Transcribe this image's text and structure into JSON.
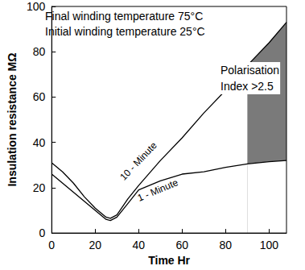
{
  "chart_data": {
    "type": "line",
    "x_label": "Time Hr",
    "y_label": "Insulation resistance MΩ",
    "x": [
      0,
      5,
      10,
      15,
      20,
      25,
      27,
      30,
      35,
      40,
      50,
      60,
      70,
      80,
      90,
      100,
      108
    ],
    "series": [
      {
        "name": "10 - Minute",
        "color": "#000000",
        "values": [
          31,
          27,
          22,
          16,
          11,
          7,
          6.5,
          8,
          15,
          21,
          32,
          42,
          53,
          63,
          74,
          84,
          93
        ]
      },
      {
        "name": "1 - Minute",
        "color": "#000000",
        "values": [
          26,
          22,
          18,
          14,
          10,
          6,
          5.5,
          7,
          13,
          19,
          23,
          26,
          27,
          29,
          30.5,
          31.5,
          32
        ]
      }
    ],
    "shaded_region": {
      "x_from": 90,
      "color": "#7a7a7a"
    },
    "annotations": [
      "Final winding temperature 75°C",
      "Initial winding temperature 25°C",
      "Polarisation Index >2.5"
    ],
    "xlim": [
      0,
      108
    ],
    "xticks": [
      0,
      20,
      40,
      60,
      80,
      100
    ],
    "ylim": [
      0,
      100
    ],
    "yticks": [
      0,
      20,
      40,
      60,
      80,
      100
    ],
    "grid": false
  }
}
